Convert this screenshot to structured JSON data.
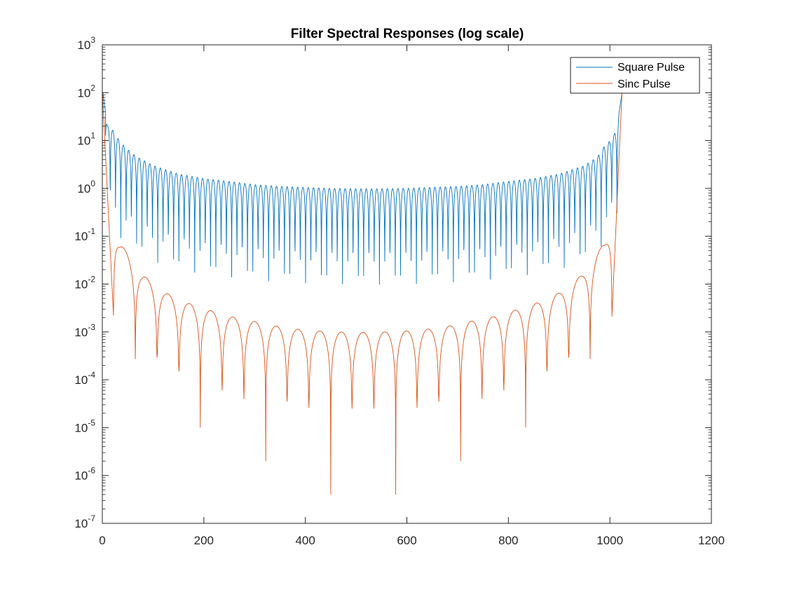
{
  "chart_data": {
    "type": "line",
    "title": "Filter Spectral Responses (log scale)",
    "xlabel": "",
    "ylabel": "",
    "xlim": [
      0,
      1200
    ],
    "ylim": [
      1e-07,
      1000
    ],
    "yscale": "log",
    "grid": false,
    "legend_position": "top-right",
    "x_ticks": [
      "0",
      "200",
      "400",
      "600",
      "800",
      "1000",
      "1200"
    ],
    "y_ticks": [
      {
        "base": "10",
        "exp": "-7",
        "value": 1e-07
      },
      {
        "base": "10",
        "exp": "-6",
        "value": 1e-06
      },
      {
        "base": "10",
        "exp": "-5",
        "value": 1e-05
      },
      {
        "base": "10",
        "exp": "-4",
        "value": 0.0001
      },
      {
        "base": "10",
        "exp": "-3",
        "value": 0.001
      },
      {
        "base": "10",
        "exp": "-2",
        "value": 0.01
      },
      {
        "base": "10",
        "exp": "-1",
        "value": 0.1
      },
      {
        "base": "10",
        "exp": "0",
        "value": 1
      },
      {
        "base": "10",
        "exp": "1",
        "value": 10
      },
      {
        "base": "10",
        "exp": "2",
        "value": 100
      },
      {
        "base": "10",
        "exp": "3",
        "value": 1000
      }
    ],
    "series": [
      {
        "name": "Square Pulse",
        "color": "#0072BD",
        "x": [
          1,
          10,
          16,
          26,
          37,
          47,
          58,
          68,
          100,
          150,
          200,
          250,
          300,
          350,
          400,
          450,
          500,
          512,
          550,
          600,
          650,
          700,
          750,
          800,
          850,
          900,
          950,
          976,
          986,
          997,
          1008,
          1014,
          1024
        ],
        "envelope": [
          100,
          20,
          20,
          13,
          9,
          7,
          5.5,
          4.6,
          3,
          2,
          1.6,
          1.4,
          1.2,
          1.1,
          1.05,
          1.0,
          0.98,
          0.98,
          0.98,
          1.0,
          1.05,
          1.1,
          1.2,
          1.4,
          1.6,
          2,
          3,
          4.6,
          7,
          9,
          13,
          20,
          100
        ],
        "lobe_width": 10.4,
        "lobe_count": 98
      },
      {
        "name": "Sinc Pulse",
        "color": "#D95319",
        "x": [
          0,
          10,
          34,
          78,
          123,
          166,
          209,
          252,
          295,
          338,
          381,
          424,
          467,
          512,
          557,
          600,
          643,
          686,
          729,
          772,
          815,
          858,
          902,
          946,
          990,
          1014,
          1024
        ],
        "envelope": [
          110,
          0.5,
          0.075,
          0.016,
          0.0067,
          0.0041,
          0.0029,
          0.0021,
          0.0017,
          0.00135,
          0.00115,
          0.00105,
          0.001,
          0.00098,
          0.001,
          0.00105,
          0.00115,
          0.00135,
          0.0017,
          0.0021,
          0.0029,
          0.0041,
          0.0067,
          0.016,
          0.075,
          0.5,
          110
        ],
        "nulls": [
          {
            "x": 22,
            "y": 0.0022
          },
          {
            "x": 65,
            "y": 0.00027
          },
          {
            "x": 108,
            "y": 0.00029
          },
          {
            "x": 151,
            "y": 0.00015
          },
          {
            "x": 193,
            "y": 1e-05
          },
          {
            "x": 236,
            "y": 6e-05
          },
          {
            "x": 279,
            "y": 4e-05
          },
          {
            "x": 322,
            "y": 2e-06
          },
          {
            "x": 364,
            "y": 3.5e-05
          },
          {
            "x": 407,
            "y": 2.6e-05
          },
          {
            "x": 450,
            "y": 4e-07
          },
          {
            "x": 492,
            "y": 2.5e-05
          },
          {
            "x": 535,
            "y": 2.5e-05
          },
          {
            "x": 578,
            "y": 4e-07
          },
          {
            "x": 620,
            "y": 2.6e-05
          },
          {
            "x": 663,
            "y": 3.5e-05
          },
          {
            "x": 706,
            "y": 2e-06
          },
          {
            "x": 748,
            "y": 4e-05
          },
          {
            "x": 791,
            "y": 6e-05
          },
          {
            "x": 834,
            "y": 1e-05
          },
          {
            "x": 876,
            "y": 0.00015
          },
          {
            "x": 919,
            "y": 0.00029
          },
          {
            "x": 961,
            "y": 0.00027
          },
          {
            "x": 1004,
            "y": 0.0021
          }
        ]
      }
    ]
  }
}
